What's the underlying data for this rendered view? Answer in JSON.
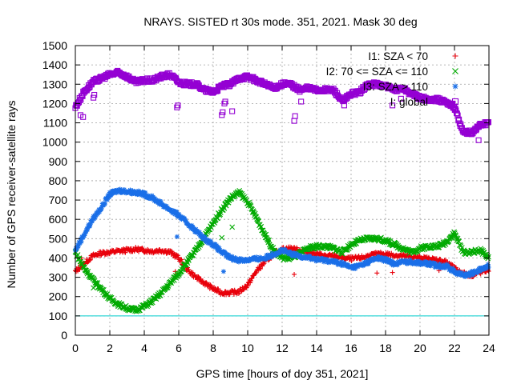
{
  "chart_data": {
    "type": "scatter",
    "title": "NRAYS. SISTED rt 30s mode. 351, 2021. Mask 30 deg",
    "xlabel": "GPS time [hours of doy 351, 2021]",
    "ylabel": "Number of GPS receiver-satellite rays",
    "xlim": [
      0,
      24
    ],
    "ylim": [
      0,
      1500
    ],
    "xticks": [
      0,
      2,
      4,
      6,
      8,
      10,
      12,
      14,
      16,
      18,
      20,
      22,
      24
    ],
    "yticks": [
      0,
      100,
      200,
      300,
      400,
      500,
      600,
      700,
      800,
      900,
      1000,
      1100,
      1200,
      1300,
      1400,
      1500
    ],
    "grid": true,
    "legend_position": "top-right",
    "reference_line": {
      "y": 100,
      "color": "#00cccc"
    },
    "series": [
      {
        "name": "I1: SZA < 70",
        "marker": "plus",
        "color": "#e8000b",
        "x": [
          0,
          0.5,
          1,
          1.5,
          2,
          2.5,
          3,
          3.5,
          4,
          4.5,
          5,
          5.5,
          6,
          6.5,
          7,
          7.5,
          8,
          8.5,
          9,
          9.5,
          10,
          10.5,
          11,
          11.5,
          12,
          12.5,
          13,
          13.5,
          14,
          14.5,
          15,
          15.5,
          16,
          16.5,
          17,
          17.5,
          18,
          18.5,
          19,
          19.5,
          20,
          20.5,
          21,
          21.5,
          22,
          22.5,
          23,
          23.5,
          24
        ],
        "y": [
          330,
          370,
          410,
          425,
          430,
          435,
          440,
          445,
          440,
          435,
          440,
          430,
          400,
          340,
          300,
          270,
          240,
          220,
          220,
          225,
          260,
          330,
          380,
          420,
          445,
          450,
          440,
          430,
          420,
          410,
          410,
          400,
          395,
          400,
          410,
          420,
          420,
          415,
          410,
          405,
          400,
          395,
          390,
          380,
          345,
          320,
          310,
          325,
          340
        ],
        "outliers_x": [
          0.05,
          0.35,
          1.1,
          5.8,
          12.7,
          17.5,
          18.4,
          21.1
        ],
        "outliers_y": [
          330,
          400,
          415,
          330,
          315,
          322,
          325,
          335
        ]
      },
      {
        "name": "I2: 70 <= SZA <= 110",
        "marker": "x",
        "color": "#00aa00",
        "x": [
          0,
          0.5,
          1,
          1.5,
          2,
          2.5,
          3,
          3.5,
          4,
          4.5,
          5,
          5.5,
          6,
          6.5,
          7,
          7.5,
          8,
          8.5,
          9,
          9.5,
          10,
          10.5,
          11,
          11.5,
          12,
          12.5,
          13,
          13.5,
          14,
          14.5,
          15,
          15.5,
          16,
          16.5,
          17,
          17.5,
          18,
          18.5,
          19,
          19.5,
          20,
          20.5,
          21,
          21.5,
          22,
          22.5,
          23,
          23.5,
          24
        ],
        "y": [
          430,
          350,
          290,
          240,
          190,
          160,
          140,
          130,
          150,
          180,
          220,
          270,
          320,
          380,
          440,
          510,
          580,
          650,
          710,
          740,
          690,
          610,
          520,
          440,
          400,
          400,
          420,
          450,
          460,
          460,
          450,
          430,
          470,
          490,
          500,
          500,
          490,
          470,
          450,
          430,
          450,
          460,
          460,
          480,
          530,
          430,
          430,
          440,
          400
        ],
        "outliers_x": [
          1.05,
          8.5,
          9.1
        ],
        "outliers_y": [
          245,
          505,
          560
        ]
      },
      {
        "name": "I3: SZA > 110",
        "marker": "star",
        "color": "#1a6fe8",
        "x": [
          0,
          0.5,
          1,
          1.5,
          2,
          2.5,
          3,
          3.5,
          4,
          4.5,
          5,
          5.5,
          6,
          6.5,
          7,
          7.5,
          8,
          8.5,
          9,
          9.5,
          10,
          10.5,
          11,
          11.5,
          12,
          12.5,
          13,
          13.5,
          14,
          14.5,
          15,
          15.5,
          16,
          16.5,
          17,
          17.5,
          18,
          18.5,
          19,
          19.5,
          20,
          20.5,
          21,
          21.5,
          22,
          22.5,
          23,
          23.5,
          24
        ],
        "y": [
          440,
          520,
          600,
          660,
          730,
          750,
          745,
          740,
          730,
          710,
          680,
          650,
          620,
          580,
          540,
          500,
          470,
          430,
          400,
          390,
          390,
          395,
          400,
          420,
          440,
          420,
          410,
          405,
          390,
          390,
          380,
          370,
          350,
          360,
          380,
          400,
          390,
          370,
          380,
          380,
          375,
          370,
          360,
          360,
          330,
          310,
          320,
          340,
          360
        ],
        "outliers_x": [
          5.9,
          8.6
        ],
        "outliers_y": [
          510,
          330
        ]
      },
      {
        "name": "I: global",
        "marker": "square",
        "color": "#9400d3",
        "x": [
          0,
          0.5,
          1,
          1.5,
          2,
          2.5,
          3,
          3.5,
          4,
          4.5,
          5,
          5.5,
          6,
          6.5,
          7,
          7.5,
          8,
          8.5,
          9,
          9.5,
          10,
          10.5,
          11,
          11.5,
          12,
          12.5,
          13,
          13.5,
          14,
          14.5,
          15,
          15.5,
          16,
          16.5,
          17,
          17.5,
          18,
          18.5,
          19,
          19.5,
          20,
          20.5,
          21,
          21.5,
          22,
          22.5,
          23,
          23.5,
          24
        ],
        "y": [
          1180,
          1260,
          1310,
          1330,
          1350,
          1360,
          1340,
          1310,
          1320,
          1320,
          1340,
          1350,
          1310,
          1300,
          1300,
          1270,
          1260,
          1290,
          1300,
          1330,
          1340,
          1320,
          1300,
          1280,
          1300,
          1300,
          1270,
          1280,
          1270,
          1270,
          1270,
          1210,
          1250,
          1260,
          1300,
          1300,
          1290,
          1270,
          1280,
          1250,
          1230,
          1220,
          1220,
          1210,
          1180,
          1050,
          1050,
          1090,
          1100
        ],
        "outliers_x": [
          0.3,
          0.45,
          1.05,
          1.1,
          5.9,
          5.95,
          8.5,
          8.55,
          8.65,
          8.7,
          9.1,
          12.7,
          12.75,
          13.1,
          15.6,
          18.4,
          18.9,
          20.3,
          21.9,
          22.05,
          23.4
        ],
        "outliers_y": [
          1140,
          1130,
          1230,
          1245,
          1180,
          1190,
          1140,
          1155,
          1200,
          1210,
          1160,
          1110,
          1135,
          1210,
          1190,
          1190,
          1225,
          1220,
          1200,
          1170,
          1010
        ]
      }
    ]
  }
}
